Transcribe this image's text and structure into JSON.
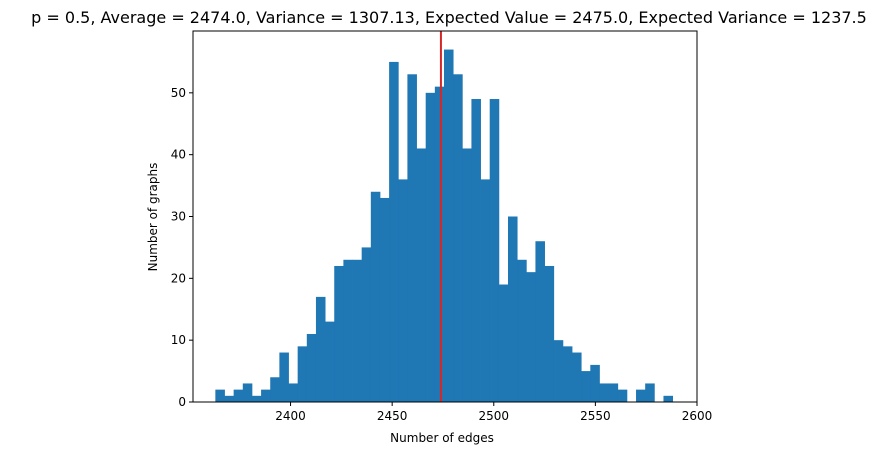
{
  "chart_data": {
    "type": "bar",
    "title": "p = 0.5, Average = 2474.0, Variance = 1307.13, Expected Value = 2475.0, Expected Variance = 1237.5",
    "xlabel": "Number of edges",
    "ylabel": "Number of graphs",
    "xlim": [
      2352,
      2600
    ],
    "ylim": [
      0,
      60
    ],
    "xticks": [
      2400,
      2450,
      2500,
      2550,
      2600
    ],
    "yticks": [
      0,
      10,
      20,
      30,
      40,
      50
    ],
    "grid": false,
    "bar_color": "#1f77b4",
    "bins": {
      "start": 2363,
      "width": 4.5,
      "counts": [
        2,
        1,
        2,
        3,
        1,
        2,
        4,
        8,
        3,
        9,
        11,
        17,
        13,
        22,
        23,
        23,
        25,
        34,
        33,
        55,
        36,
        53,
        41,
        50,
        51,
        57,
        53,
        41,
        49,
        36,
        49,
        19,
        30,
        23,
        21,
        26,
        22,
        10,
        9,
        8,
        5,
        6,
        3,
        3,
        2,
        0,
        2,
        3,
        0,
        1
      ]
    },
    "vline": {
      "x": 2474,
      "color": "#d62728",
      "label": "Average"
    }
  }
}
